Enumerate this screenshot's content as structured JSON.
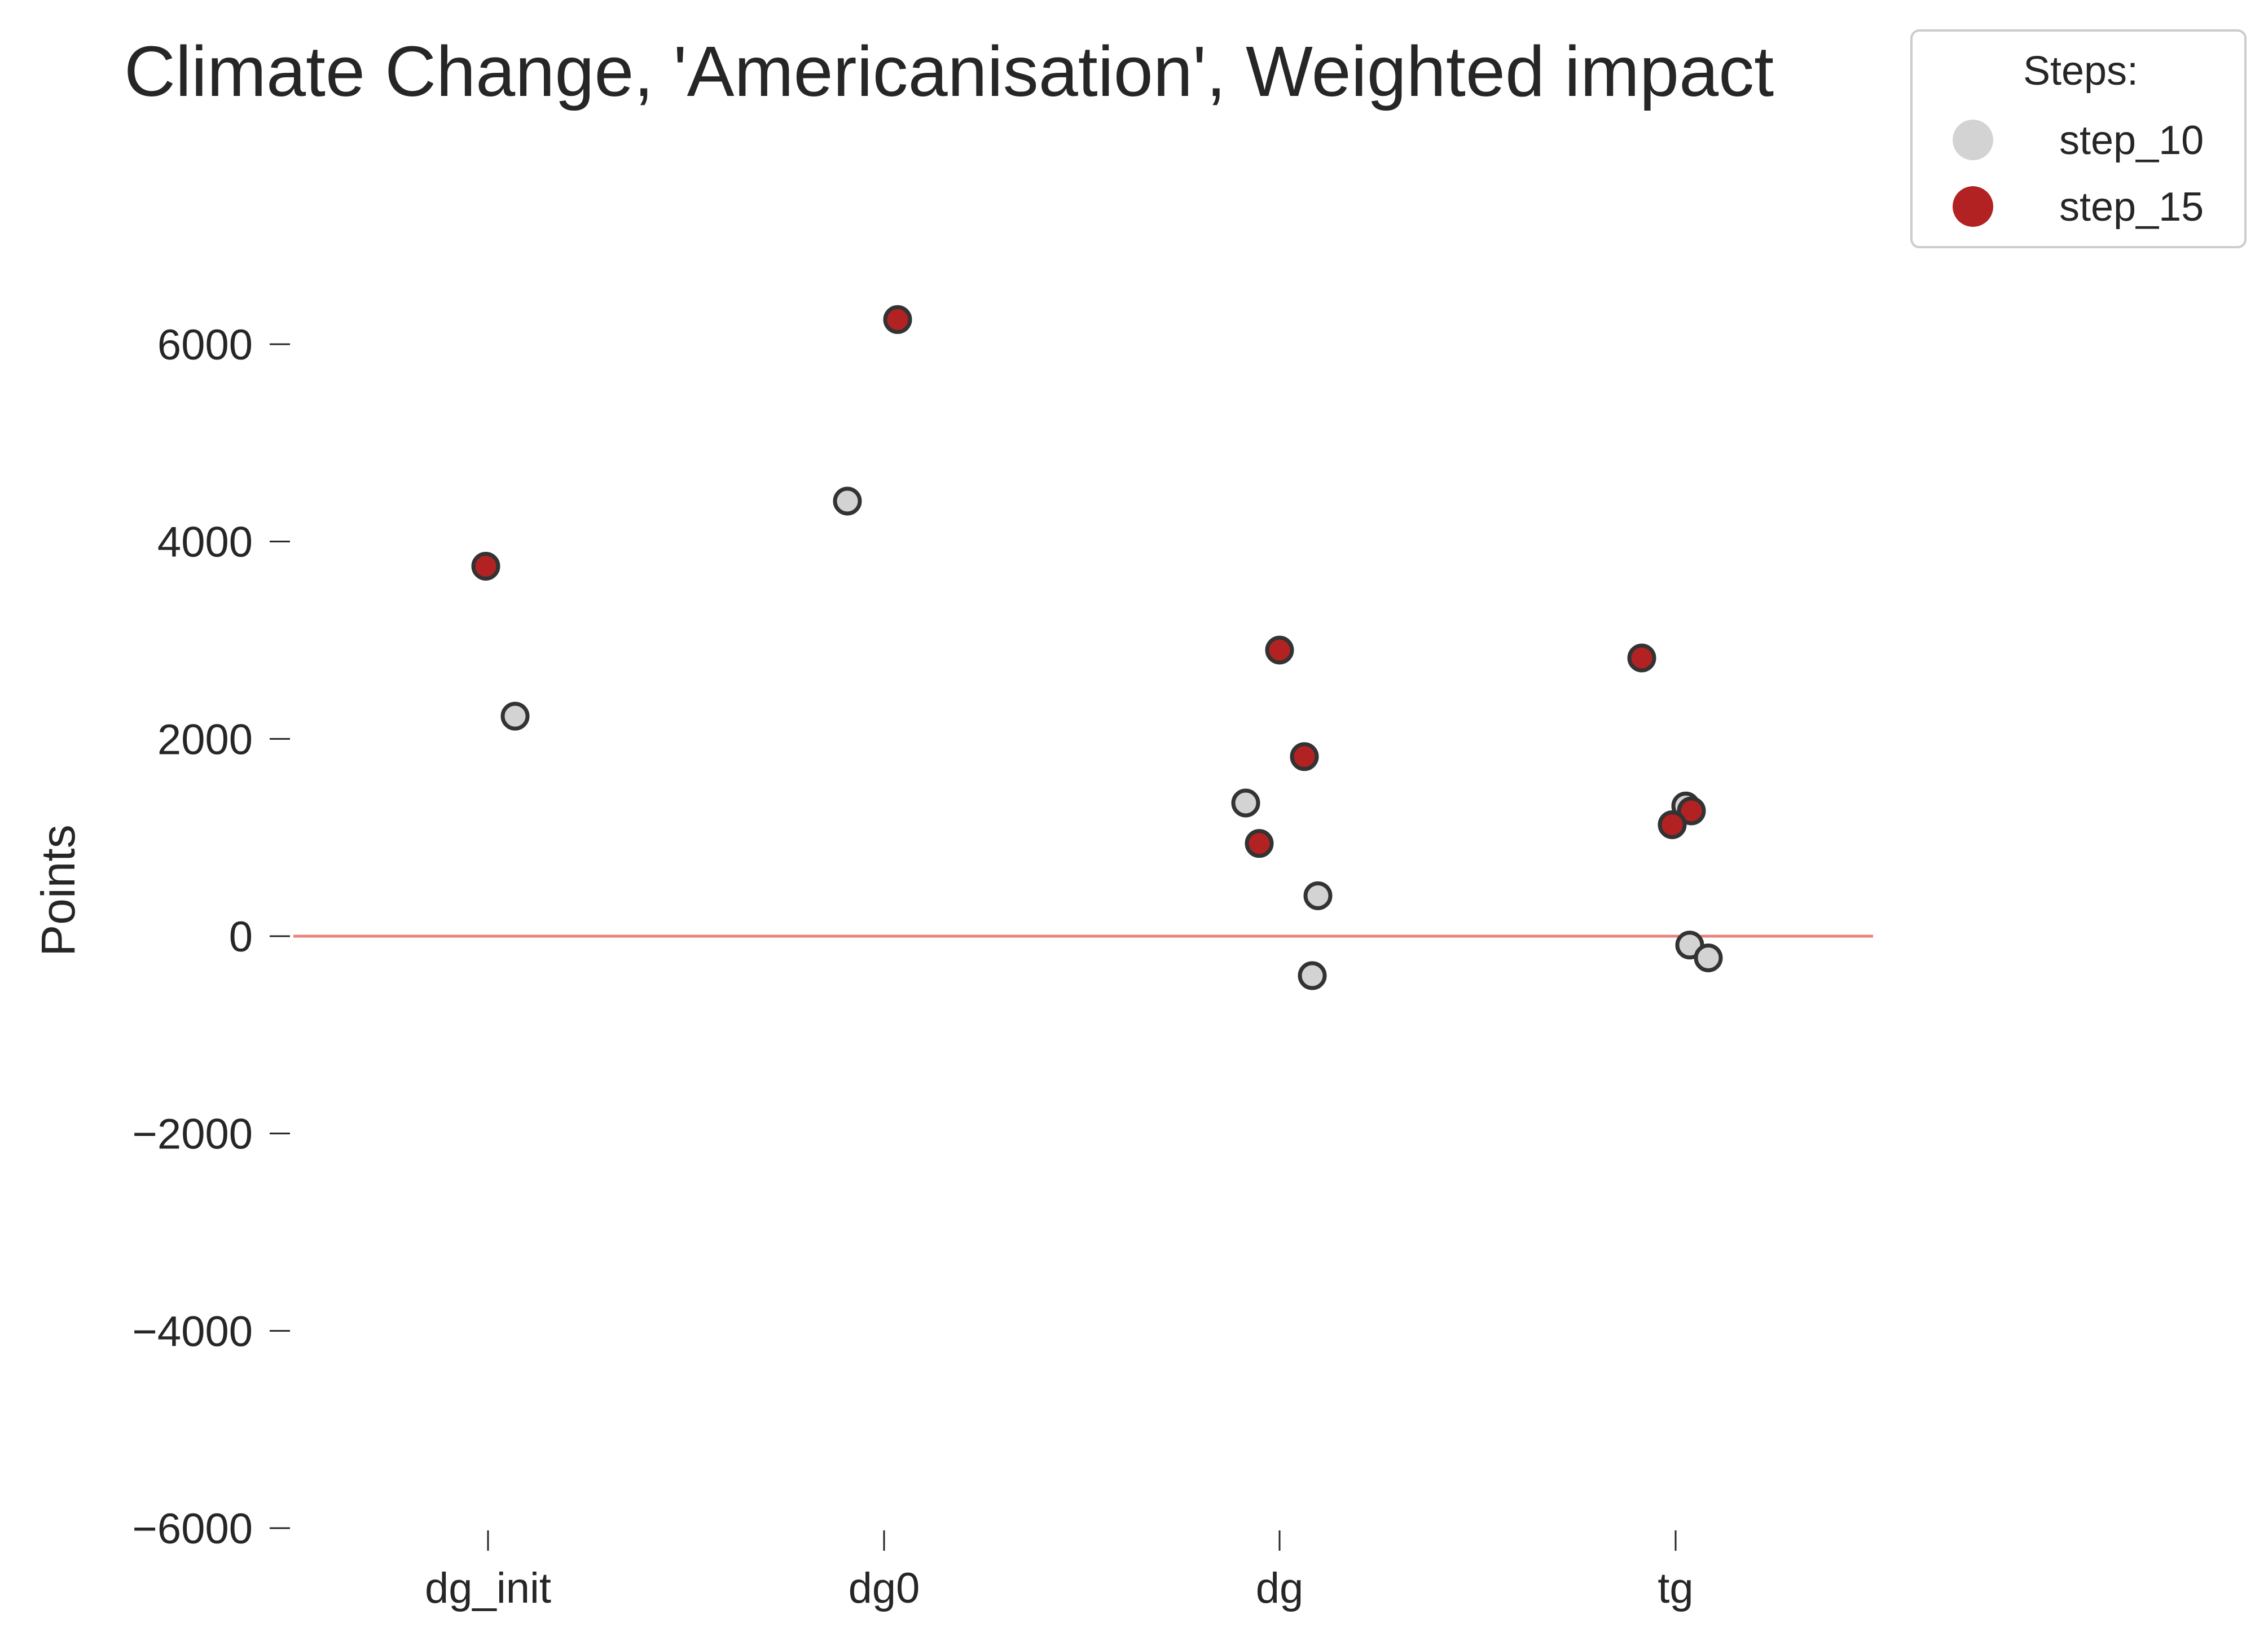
{
  "chart_data": {
    "type": "scatter",
    "title": "Climate Change, 'Americanisation', Weighted impact",
    "xlabel": "",
    "ylabel": "Points",
    "categories": [
      "dg_init",
      "dg0",
      "dg",
      "tg"
    ],
    "ylim": [
      -6000,
      6000
    ],
    "yticks": [
      -6000,
      -4000,
      -2000,
      0,
      2000,
      4000,
      6000
    ],
    "ytick_labels": [
      "−6000",
      "−4000",
      "−2000",
      "0",
      "2000",
      "4000",
      "6000"
    ],
    "reference_line": {
      "y": 0,
      "color": "#e8837a"
    },
    "grid": false,
    "legend": {
      "title": "Steps:",
      "placement": "top-right"
    },
    "series": [
      {
        "name": "step_10",
        "color": "#d3d3d3",
        "points": [
          {
            "category": "dg_init",
            "y": 2230
          },
          {
            "category": "dg0",
            "y": 4410
          },
          {
            "category": "dg",
            "y": 1350
          },
          {
            "category": "dg",
            "y": 410
          },
          {
            "category": "dg",
            "y": -400
          },
          {
            "category": "tg",
            "y": 1320
          },
          {
            "category": "tg",
            "y": -90
          },
          {
            "category": "tg",
            "y": -220
          }
        ]
      },
      {
        "name": "step_15",
        "color": "#b22222",
        "points": [
          {
            "category": "dg_init",
            "y": 3750
          },
          {
            "category": "dg0",
            "y": 6250
          },
          {
            "category": "dg",
            "y": 2900
          },
          {
            "category": "dg",
            "y": 1820
          },
          {
            "category": "dg",
            "y": 940
          },
          {
            "category": "tg",
            "y": 2820
          },
          {
            "category": "tg",
            "y": 1270
          },
          {
            "category": "tg",
            "y": 1130
          }
        ]
      }
    ]
  }
}
